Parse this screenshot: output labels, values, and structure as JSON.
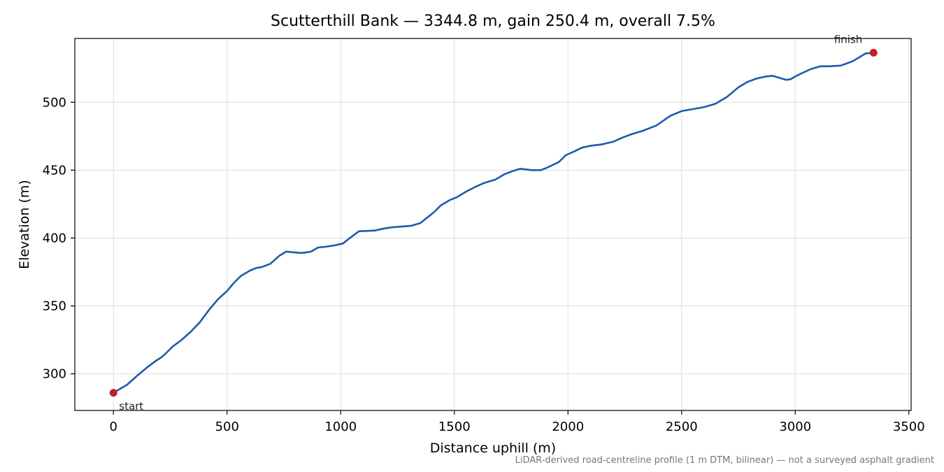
{
  "chart_data": {
    "type": "line",
    "title": "Scutterthill Bank — 3344.8 m, gain 250.4 m, overall 7.5%",
    "xlabel": "Distance uphill (m)",
    "ylabel": "Elevation (m)",
    "xlim": [
      -170,
      3510
    ],
    "ylim": [
      273,
      547
    ],
    "xticks": [
      0,
      500,
      1000,
      1500,
      2000,
      2500,
      3000,
      3500
    ],
    "yticks": [
      300,
      350,
      400,
      450,
      500
    ],
    "grid": true,
    "line_color": "#1f5aad",
    "marker_color": "#c0202a",
    "series": [
      {
        "x": [
          0,
          30,
          60,
          100,
          150,
          190,
          210,
          230,
          260,
          300,
          340,
          380,
          420,
          460,
          500,
          530,
          560,
          600,
          630,
          650,
          690,
          730,
          760,
          790,
          830,
          870,
          900,
          930,
          970,
          1010,
          1040,
          1080,
          1110,
          1150,
          1190,
          1230,
          1270,
          1310,
          1350,
          1380,
          1410,
          1440,
          1480,
          1510,
          1550,
          1590,
          1630,
          1680,
          1720,
          1760,
          1790,
          1820,
          1840,
          1880,
          1910,
          1960,
          1990,
          2030,
          2060,
          2100,
          2150,
          2200,
          2240,
          2280,
          2330,
          2390,
          2450,
          2500,
          2550,
          2600,
          2650,
          2700,
          2750,
          2790,
          2830,
          2870,
          2900,
          2930,
          2960,
          2980,
          3000,
          3030,
          3070,
          3110,
          3150,
          3200,
          3250,
          3280,
          3310,
          3344.8
        ],
        "y": [
          286,
          289,
          292,
          298,
          305,
          310,
          312,
          315,
          320,
          325,
          331,
          338,
          347,
          355,
          361,
          367,
          372,
          376,
          378,
          378.5,
          381,
          387,
          390,
          389.5,
          389,
          390,
          393,
          393.5,
          394.5,
          396,
          400,
          405,
          405.2,
          405.5,
          407,
          408,
          408.5,
          409,
          411,
          415,
          419,
          424,
          428,
          430,
          434,
          437.5,
          440.5,
          443,
          447,
          449.5,
          451,
          450.5,
          450,
          450,
          452,
          456,
          461,
          464,
          466.5,
          468,
          469,
          471,
          474,
          476.5,
          479,
          483,
          490,
          493.5,
          495,
          496.5,
          499,
          504,
          511,
          515,
          517.5,
          519,
          519.5,
          518,
          516.5,
          517,
          519,
          521.5,
          524.5,
          526.5,
          526.5,
          527,
          530,
          533,
          536,
          536.5
        ]
      }
    ],
    "annotations": [
      {
        "text": "start",
        "x": 0,
        "y": 286
      },
      {
        "text": "finish",
        "x": 3344.8,
        "y": 536.5
      }
    ],
    "footnote": "LiDAR-derived road-centreline profile (1 m DTM, bilinear) — not a surveyed asphalt gradient"
  }
}
